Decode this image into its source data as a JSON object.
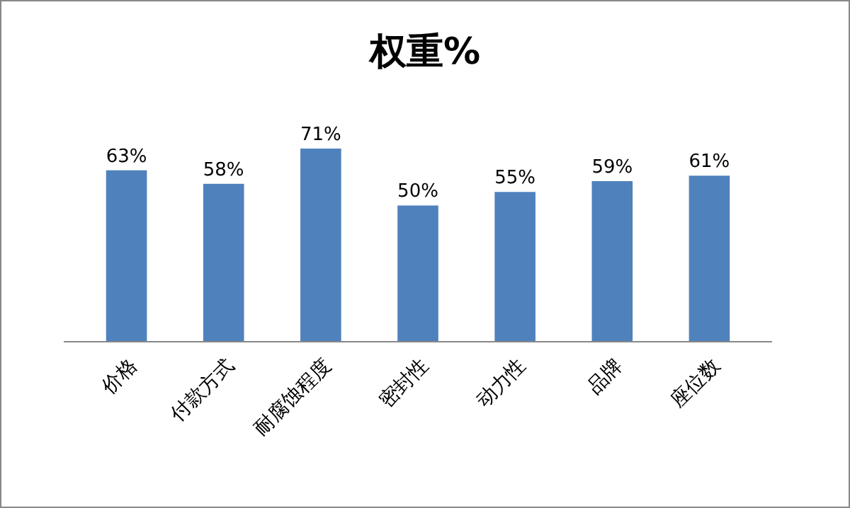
{
  "chart_data": {
    "type": "bar",
    "title": "权重%",
    "categories": [
      "价格",
      "付款方式",
      "耐腐蚀程度",
      "密封性",
      "动力性",
      "品牌",
      "座位数"
    ],
    "values": [
      63,
      58,
      71,
      50,
      55,
      59,
      61
    ],
    "value_labels": [
      "63%",
      "58%",
      "71%",
      "50%",
      "55%",
      "59%",
      "61%"
    ],
    "color": "#4f81bd"
  }
}
